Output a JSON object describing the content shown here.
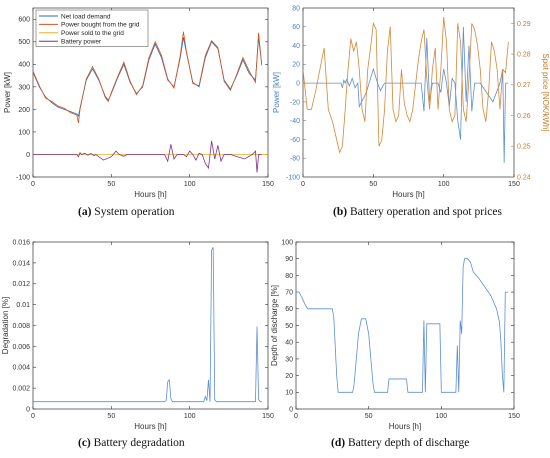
{
  "captions": [
    {
      "tag": "(a)",
      "text": "System operation"
    },
    {
      "tag": "(b)",
      "text": "Battery operation and spot prices"
    },
    {
      "tag": "(c)",
      "text": "Battery degradation"
    },
    {
      "tag": "(d)",
      "text": "Battery depth of discharge"
    }
  ],
  "chart_data": [
    {
      "id": "a",
      "type": "line",
      "xlabel": "Hours [h]",
      "ylabel": "Power [kW]",
      "xlim": [
        0,
        150
      ],
      "ylim": [
        -100,
        650
      ],
      "xticks": [
        0,
        50,
        100,
        150
      ],
      "yticks": [
        -100,
        0,
        100,
        200,
        300,
        400,
        500,
        600
      ],
      "legend": "top-left",
      "grid": false,
      "series": [
        {
          "name": "Net load demand",
          "color": "#1f6fbf",
          "x": [
            0,
            4,
            8,
            12,
            16,
            20,
            24,
            28,
            29,
            30,
            34,
            38,
            42,
            46,
            48,
            50,
            54,
            58,
            62,
            66,
            70,
            74,
            78,
            82,
            86,
            90,
            94,
            96,
            98,
            102,
            106,
            110,
            114,
            118,
            122,
            126,
            130,
            134,
            138,
            142,
            144,
            146
          ],
          "y": [
            365,
            300,
            255,
            230,
            210,
            200,
            190,
            180,
            170,
            205,
            330,
            380,
            330,
            260,
            240,
            270,
            340,
            400,
            320,
            270,
            300,
            420,
            490,
            430,
            330,
            300,
            430,
            520,
            450,
            320,
            300,
            430,
            500,
            470,
            330,
            290,
            350,
            420,
            360,
            330,
            520,
            400
          ]
        },
        {
          "name": "Power bought from the grid",
          "color": "#d95319",
          "x": [
            0,
            4,
            8,
            12,
            16,
            20,
            24,
            28,
            29,
            30,
            34,
            38,
            42,
            46,
            48,
            50,
            54,
            58,
            62,
            66,
            70,
            74,
            78,
            82,
            86,
            90,
            94,
            96,
            98,
            102,
            106,
            110,
            114,
            118,
            122,
            126,
            130,
            134,
            138,
            142,
            144,
            146
          ],
          "y": [
            370,
            305,
            250,
            235,
            215,
            205,
            185,
            175,
            140,
            200,
            335,
            390,
            335,
            255,
            235,
            275,
            345,
            410,
            325,
            265,
            305,
            430,
            500,
            440,
            335,
            295,
            440,
            545,
            455,
            315,
            305,
            440,
            505,
            475,
            325,
            285,
            355,
            430,
            370,
            320,
            540,
            395
          ]
        },
        {
          "name": "Power sold to the grid",
          "color": "#edb120",
          "x": [
            0,
            150
          ],
          "y": [
            0,
            0
          ]
        },
        {
          "name": "Battery power",
          "color": "#7e2f8e",
          "x": [
            0,
            10,
            20,
            28,
            29,
            30,
            31,
            33,
            35,
            37,
            39,
            40,
            45,
            50,
            53,
            55,
            58,
            60,
            70,
            84,
            86,
            88,
            90,
            92,
            96,
            98,
            100,
            102,
            104,
            106,
            108,
            110,
            112,
            114,
            116,
            118,
            120,
            122,
            126,
            135,
            140,
            142,
            143,
            144,
            146
          ],
          "y": [
            0,
            0,
            0,
            0,
            -10,
            8,
            0,
            5,
            -3,
            4,
            -5,
            0,
            -25,
            -10,
            15,
            0,
            -8,
            0,
            0,
            0,
            -30,
            45,
            -20,
            0,
            0,
            -10,
            15,
            0,
            -25,
            5,
            0,
            -40,
            -60,
            60,
            -20,
            40,
            -30,
            0,
            0,
            -20,
            0,
            15,
            -80,
            0,
            0
          ]
        }
      ]
    },
    {
      "id": "b",
      "type": "line",
      "xlabel": "Hours [h]",
      "ylabel": "Power [kW]",
      "y2label": "Spot price [NOK/kWh]",
      "xlim": [
        0,
        150
      ],
      "ylim": [
        -100,
        80
      ],
      "y2lim": [
        0.24,
        0.295
      ],
      "xticks": [
        0,
        50,
        100,
        150
      ],
      "yticks": [
        -100,
        -80,
        -60,
        -40,
        -20,
        0,
        20,
        40,
        60,
        80
      ],
      "y2ticks": [
        0.24,
        0.25,
        0.26,
        0.27,
        0.28,
        0.29
      ],
      "grid": false,
      "series": [
        {
          "name": "Battery power",
          "axis": "left",
          "color": "#5b8fd3",
          "x": [
            0,
            10,
            20,
            27,
            28,
            29,
            30,
            31,
            33,
            35,
            37,
            39,
            40,
            45,
            50,
            53,
            55,
            58,
            60,
            70,
            84,
            86,
            88,
            90,
            92,
            96,
            98,
            100,
            102,
            104,
            106,
            108,
            110,
            112,
            114,
            116,
            118,
            120,
            122,
            126,
            135,
            140,
            142,
            143,
            144,
            146
          ],
          "y": [
            0,
            0,
            0,
            0,
            -5,
            3,
            0,
            4,
            -3,
            5,
            -5,
            0,
            -25,
            -10,
            15,
            0,
            -8,
            0,
            0,
            0,
            0,
            -30,
            48,
            -20,
            0,
            0,
            -10,
            15,
            0,
            -25,
            5,
            0,
            -40,
            -60,
            60,
            -20,
            40,
            -30,
            0,
            0,
            -20,
            0,
            15,
            -85,
            0,
            0
          ]
        },
        {
          "name": "Spot price",
          "axis": "right",
          "color": "#d2873a",
          "x": [
            0,
            3,
            6,
            9,
            12,
            15,
            18,
            21,
            24,
            26,
            28,
            30,
            32,
            34,
            36,
            38,
            40,
            42,
            44,
            46,
            48,
            50,
            52,
            54,
            56,
            58,
            60,
            62,
            64,
            66,
            68,
            70,
            72,
            74,
            76,
            78,
            80,
            82,
            84,
            86,
            88,
            90,
            92,
            94,
            96,
            98,
            100,
            102,
            104,
            106,
            108,
            110,
            112,
            114,
            116,
            118,
            120,
            122,
            124,
            126,
            128,
            130,
            132,
            134,
            136,
            138,
            140,
            142,
            144,
            146
          ],
          "y": [
            0.275,
            0.262,
            0.262,
            0.268,
            0.275,
            0.282,
            0.262,
            0.258,
            0.252,
            0.248,
            0.25,
            0.262,
            0.275,
            0.285,
            0.281,
            0.284,
            0.275,
            0.262,
            0.258,
            0.275,
            0.282,
            0.29,
            0.288,
            0.25,
            0.252,
            0.262,
            0.281,
            0.289,
            0.262,
            0.258,
            0.26,
            0.275,
            0.264,
            0.26,
            0.258,
            0.262,
            0.27,
            0.278,
            0.284,
            0.288,
            0.272,
            0.262,
            0.275,
            0.282,
            0.262,
            0.275,
            0.292,
            0.284,
            0.262,
            0.258,
            0.26,
            0.29,
            0.284,
            0.262,
            0.258,
            0.272,
            0.29,
            0.288,
            0.283,
            0.275,
            0.262,
            0.258,
            0.268,
            0.284,
            0.281,
            0.275,
            0.262,
            0.275,
            0.274,
            0.284
          ]
        }
      ]
    },
    {
      "id": "c",
      "type": "line",
      "xlabel": "Hours [h]",
      "ylabel": "Degradation [%]",
      "xlim": [
        0,
        150
      ],
      "ylim": [
        0,
        0.016
      ],
      "xticks": [
        0,
        50,
        100,
        150
      ],
      "yticks": [
        "0",
        "0.002",
        "0.004",
        "0.006",
        "0.008",
        "0.01",
        "0.012",
        "0.014",
        "0.016"
      ],
      "grid": false,
      "series": [
        {
          "name": "Degradation",
          "color": "#5b8fd3",
          "x": [
            0,
            84,
            85,
            86,
            87,
            88,
            89,
            90,
            109,
            110,
            111,
            112,
            113,
            114,
            115,
            116,
            117,
            118,
            142,
            143,
            144,
            145,
            146
          ],
          "y": [
            0.0007,
            0.0007,
            0.0008,
            0.0026,
            0.0028,
            0.001,
            0.0007,
            0.0007,
            0.0007,
            0.0012,
            0.0008,
            0.0028,
            0.0007,
            0.0152,
            0.0155,
            0.0009,
            0.0007,
            0.0007,
            0.0007,
            0.0079,
            0.0009,
            0.0007,
            0.0007
          ]
        }
      ]
    },
    {
      "id": "d",
      "type": "line",
      "xlabel": "Hours [h]",
      "ylabel": "Depth of discharge [%]",
      "xlim": [
        0,
        150
      ],
      "ylim": [
        0,
        100
      ],
      "xticks": [
        0,
        50,
        100,
        150
      ],
      "yticks": [
        0,
        10,
        20,
        30,
        40,
        50,
        60,
        70,
        80,
        90,
        100
      ],
      "grid": false,
      "series": [
        {
          "name": "Depth of discharge",
          "color": "#5b8fd3",
          "x": [
            0,
            2,
            4,
            6,
            8,
            25,
            26,
            28,
            29,
            30,
            37,
            39,
            40,
            43,
            45,
            48,
            50,
            53,
            54,
            56,
            57,
            62,
            63,
            64,
            70,
            71,
            76,
            77,
            78,
            84,
            85,
            86,
            87,
            88,
            89,
            90,
            92,
            93,
            94,
            99,
            100,
            101,
            108,
            109,
            110,
            111,
            112,
            113,
            114,
            115,
            116,
            117,
            118,
            120,
            122,
            126,
            130,
            134,
            138,
            140,
            141,
            142,
            143,
            144,
            145,
            146
          ],
          "y": [
            70,
            70,
            67,
            63,
            60,
            60,
            55,
            20,
            10,
            10,
            10,
            10,
            15,
            45,
            54,
            54,
            45,
            15,
            10,
            10,
            10,
            10,
            10,
            18,
            18,
            18,
            18,
            10,
            10,
            10,
            10,
            10,
            10,
            53,
            10,
            51,
            51,
            51,
            51,
            51,
            10,
            10,
            10,
            10,
            10,
            38,
            10,
            53,
            45,
            85,
            90,
            90,
            90,
            88,
            82,
            78,
            73,
            68,
            60,
            52,
            40,
            20,
            10,
            70,
            70,
            70
          ]
        }
      ]
    }
  ]
}
